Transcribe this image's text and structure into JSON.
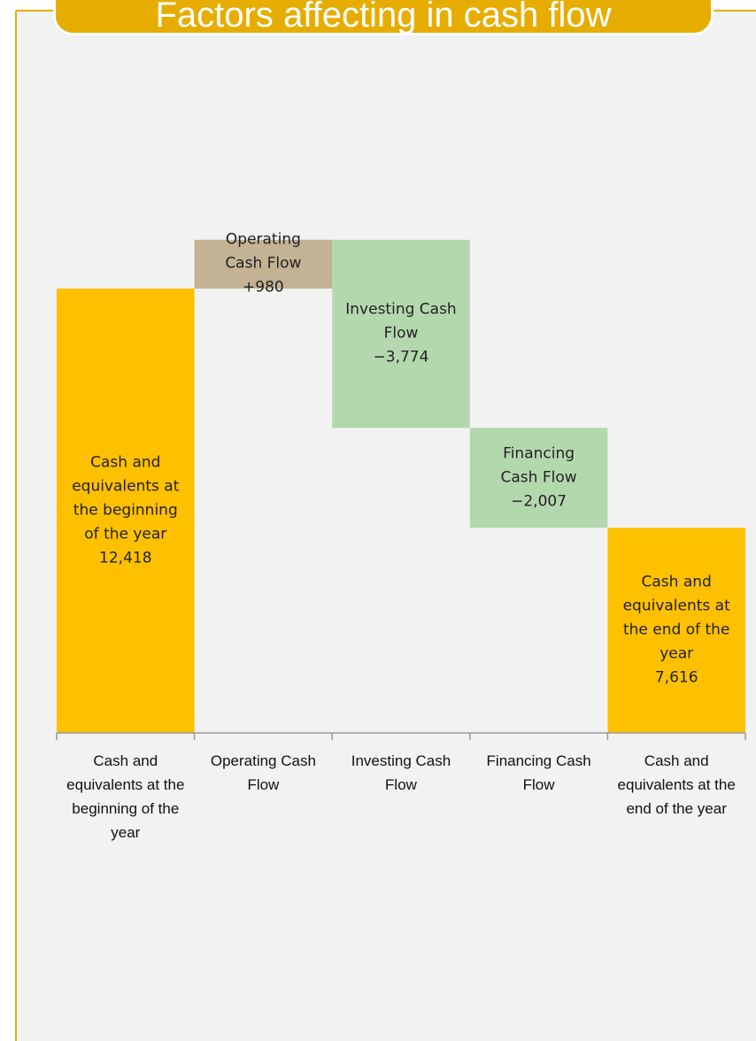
{
  "chart_data": {
    "type": "waterfall",
    "title": "Factors affecting in cash flow",
    "categories": [
      "Cash and equivalents at the beginning of the year",
      "Operating Cash Flow",
      "Investing Cash Flow",
      "Financing Cash Flow",
      "Cash and equivalents at the end of the year"
    ],
    "bar_labels": [
      "Cash and equivalents at the beginning of the year",
      "Operating Cash Flow",
      "Investing Cash Flow",
      "Financing Cash Flow",
      "Cash and equivalents at the end of the year"
    ],
    "values": [
      12418,
      980,
      -3774,
      -2007,
      7616
    ],
    "value_labels": [
      "12,418",
      "+980",
      "−3,774",
      "−2,007",
      "7,616"
    ],
    "colors": [
      "#ffc000",
      "#c3b293",
      "#b4d8ae",
      "#b4d8ae",
      "#ffc000"
    ],
    "ylim": [
      3500,
      17500
    ]
  }
}
